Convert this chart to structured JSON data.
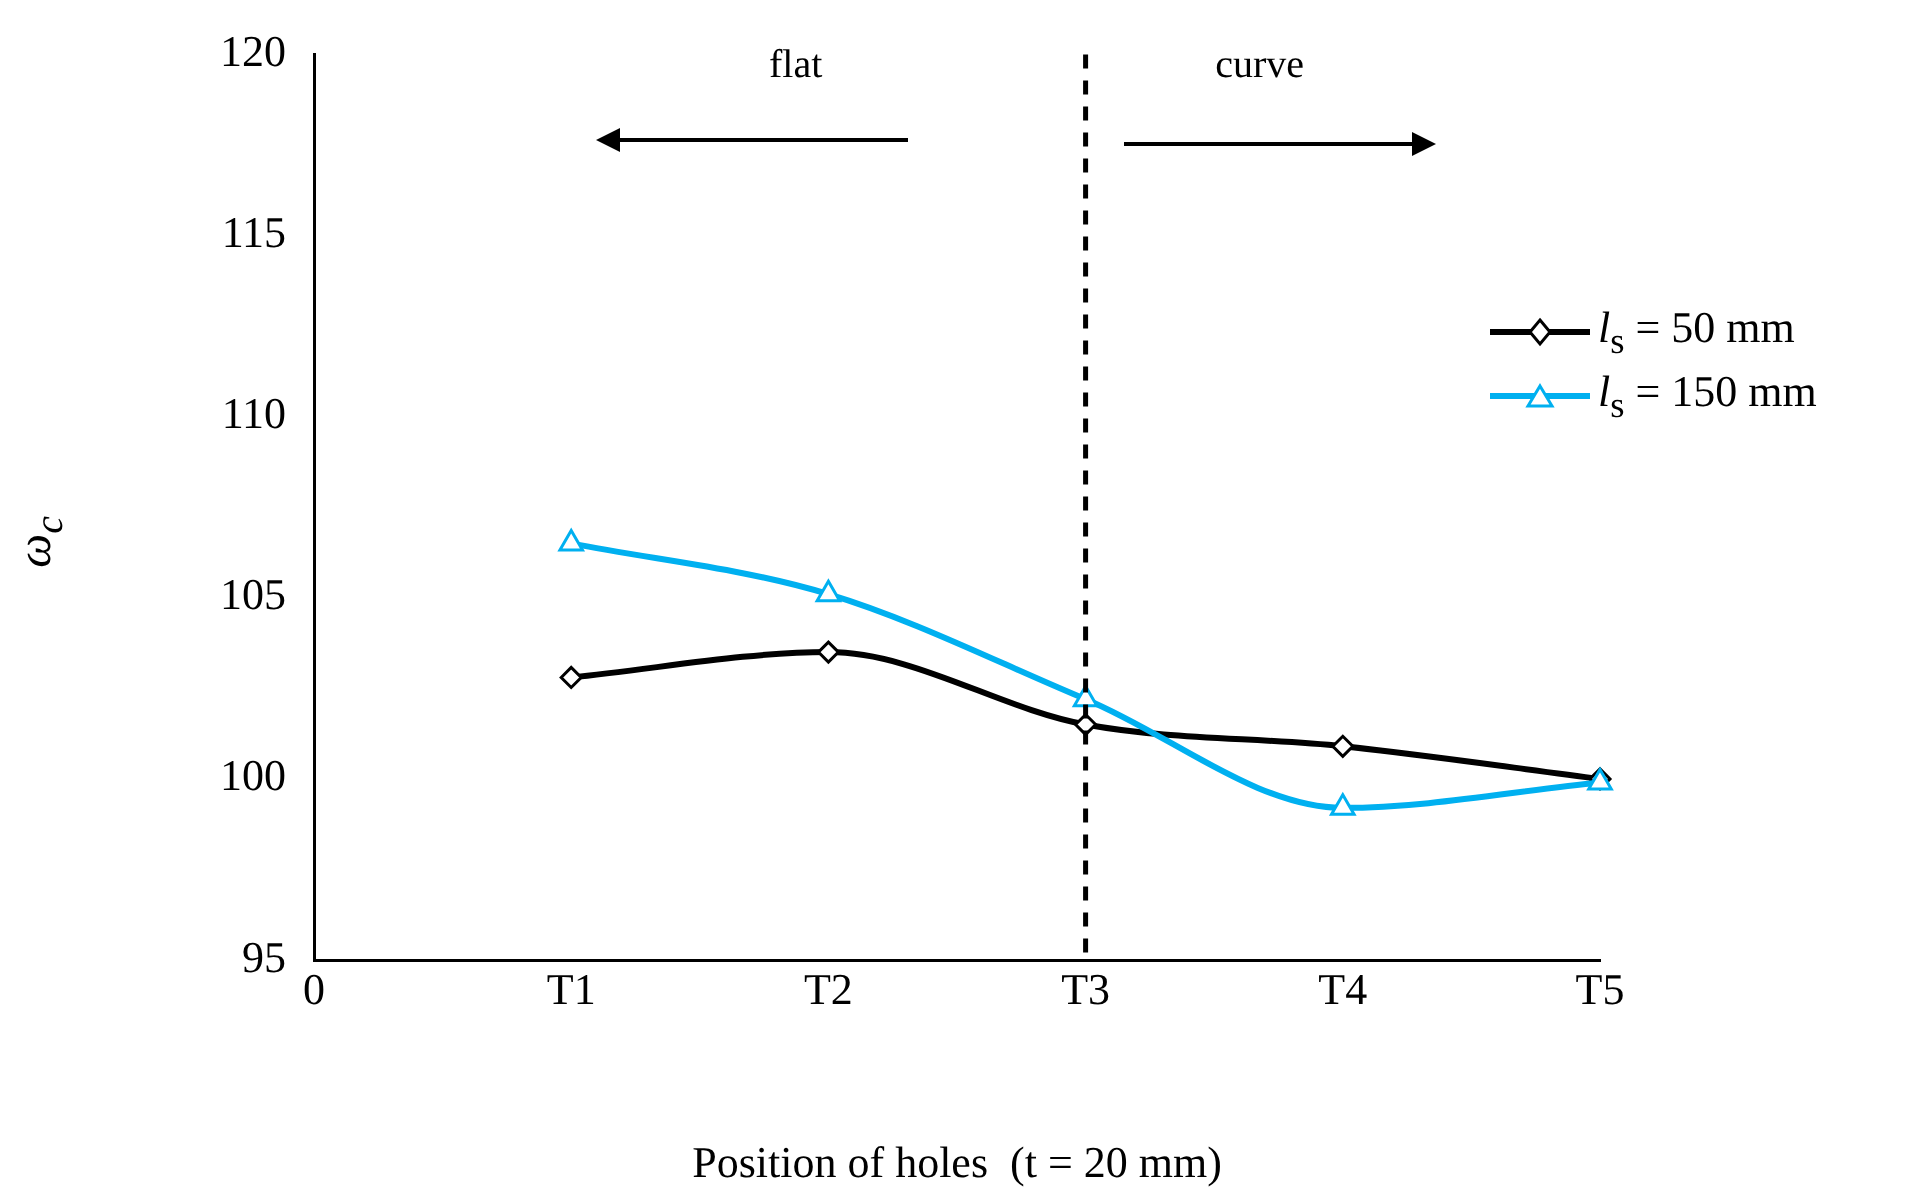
{
  "chart_data": {
    "type": "line",
    "xlabel": "Position of holes  (t = 20 mm)",
    "ylabel": "ω$_{c}$",
    "categories": [
      "0",
      "T1",
      "T2",
      "T3",
      "T4",
      "T5"
    ],
    "series": [
      {
        "name": "l$_{s}$ = 50 mm",
        "color": "#000000",
        "marker": "diamond",
        "values": [
          null,
          102.8,
          103.5,
          101.5,
          100.9,
          100.0
        ]
      },
      {
        "name": "l$_{s}$ = 150 mm",
        "color": "#00b0f0",
        "marker": "triangle",
        "values": [
          null,
          106.5,
          105.1,
          102.2,
          99.2,
          99.9
        ]
      }
    ],
    "ylim": [
      95,
      120
    ],
    "yticks": [
      95,
      100,
      105,
      110,
      115,
      120
    ],
    "ref_lines": [
      {
        "axis": "x",
        "value": "T3",
        "line_style": "dashed",
        "color": "#000000"
      }
    ],
    "annotations": [
      "flat",
      "curve"
    ],
    "grid": false,
    "legend": "right"
  }
}
